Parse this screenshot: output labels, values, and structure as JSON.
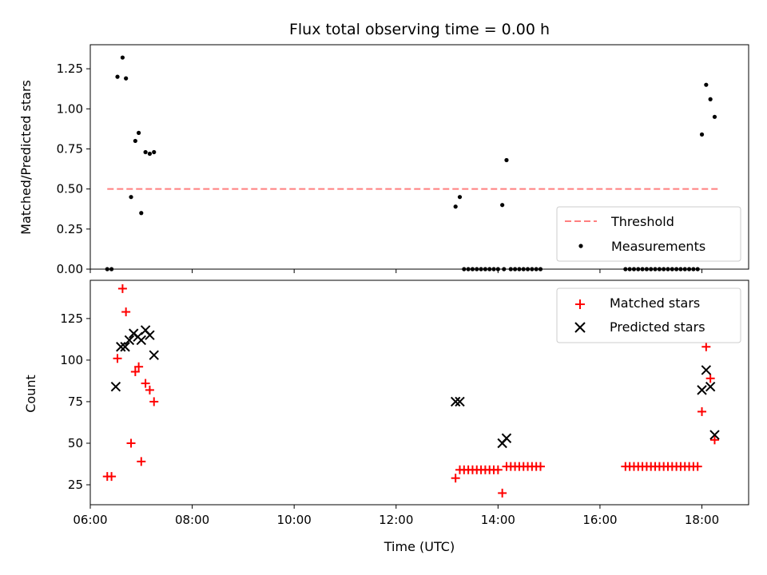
{
  "chart_data": [
    {
      "type": "scatter",
      "title": "Flux total observing time = 0.00 h",
      "xlabel": "",
      "ylabel": "Matched/Predicted stars",
      "xlim": [
        "06:00",
        "18:55"
      ],
      "ylim": [
        0,
        1.4
      ],
      "xticks": [
        "06:00",
        "08:00",
        "10:00",
        "12:00",
        "14:00",
        "16:00",
        "18:00"
      ],
      "xtick_labels_visible": false,
      "yticks": [
        0.0,
        0.25,
        0.5,
        0.75,
        1.0,
        1.25
      ],
      "ytick_labels": [
        "0.00",
        "0.25",
        "0.50",
        "0.75",
        "1.00",
        "1.25"
      ],
      "legend_position": "lower-right",
      "series": [
        {
          "name": "Threshold",
          "kind": "line",
          "style": "dashed",
          "color": "#ff7f7f",
          "x": [
            "06:20",
            "18:20"
          ],
          "y": [
            0.5,
            0.5
          ]
        },
        {
          "name": "Measurements",
          "kind": "scatter",
          "marker": "dot",
          "color": "#000000",
          "x": [
            "06:20",
            "06:25",
            "06:32",
            "06:38",
            "06:42",
            "06:48",
            "06:53",
            "06:57",
            "07:00",
            "07:05",
            "07:10",
            "07:15",
            "13:10",
            "13:15",
            "13:20",
            "13:25",
            "13:30",
            "13:35",
            "13:40",
            "13:45",
            "13:50",
            "13:55",
            "14:00",
            "14:05",
            "14:07",
            "14:10",
            "14:15",
            "14:20",
            "14:25",
            "14:30",
            "14:35",
            "14:40",
            "14:45",
            "14:50",
            "16:30",
            "16:35",
            "16:40",
            "16:45",
            "16:50",
            "16:55",
            "17:00",
            "17:05",
            "17:10",
            "17:15",
            "17:20",
            "17:25",
            "17:30",
            "17:35",
            "17:40",
            "17:45",
            "17:50",
            "17:55",
            "18:00",
            "18:05",
            "18:10",
            "18:15"
          ],
          "y": [
            0,
            0,
            1.2,
            1.32,
            1.19,
            0.45,
            0.8,
            0.85,
            0.35,
            0.73,
            0.72,
            0.73,
            0.39,
            0.45,
            0,
            0,
            0,
            0,
            0,
            0,
            0,
            0,
            0,
            0.4,
            0,
            0.68,
            0,
            0,
            0,
            0,
            0,
            0,
            0,
            0,
            0,
            0,
            0,
            0,
            0,
            0,
            0,
            0,
            0,
            0,
            0,
            0,
            0,
            0,
            0,
            0,
            0,
            0,
            0.84,
            1.15,
            1.06,
            0.95
          ]
        }
      ]
    },
    {
      "type": "scatter",
      "title": "",
      "xlabel": "Time (UTC)",
      "ylabel": "Count",
      "xlim": [
        "06:00",
        "18:55"
      ],
      "ylim": [
        13,
        148
      ],
      "xticks": [
        "06:00",
        "08:00",
        "10:00",
        "12:00",
        "14:00",
        "16:00",
        "18:00"
      ],
      "yticks": [
        25,
        50,
        75,
        100,
        125
      ],
      "legend_position": "upper-right",
      "series": [
        {
          "name": "Matched stars",
          "kind": "scatter",
          "marker": "plus",
          "color": "#ff0000",
          "x": [
            "06:20",
            "06:25",
            "06:32",
            "06:38",
            "06:42",
            "06:48",
            "06:53",
            "06:57",
            "07:00",
            "07:05",
            "07:10",
            "07:15",
            "13:10",
            "13:15",
            "13:20",
            "13:25",
            "13:30",
            "13:35",
            "13:40",
            "13:45",
            "13:50",
            "13:55",
            "14:00",
            "14:05",
            "14:10",
            "14:15",
            "14:20",
            "14:25",
            "14:30",
            "14:35",
            "14:40",
            "14:45",
            "14:50",
            "16:30",
            "16:35",
            "16:40",
            "16:45",
            "16:50",
            "16:55",
            "17:00",
            "17:05",
            "17:10",
            "17:15",
            "17:20",
            "17:25",
            "17:30",
            "17:35",
            "17:40",
            "17:45",
            "17:50",
            "17:55",
            "18:00",
            "18:05",
            "18:10",
            "18:15"
          ],
          "y": [
            30,
            30,
            101,
            143,
            129,
            50,
            93,
            96,
            39,
            86,
            82,
            75,
            29,
            34,
            34,
            34,
            34,
            34,
            34,
            34,
            34,
            34,
            34,
            20,
            36,
            36,
            36,
            36,
            36,
            36,
            36,
            36,
            36,
            36,
            36,
            36,
            36,
            36,
            36,
            36,
            36,
            36,
            36,
            36,
            36,
            36,
            36,
            36,
            36,
            36,
            36,
            69,
            108,
            89,
            52
          ]
        },
        {
          "name": "Predicted stars",
          "kind": "scatter",
          "marker": "x",
          "color": "#000000",
          "x": [
            "06:30",
            "06:36",
            "06:41",
            "06:46",
            "06:51",
            "06:56",
            "07:00",
            "07:05",
            "07:10",
            "07:15",
            "13:10",
            "13:15",
            "14:05",
            "14:10",
            "18:00",
            "18:05",
            "18:10",
            "18:15"
          ],
          "y": [
            84,
            108,
            108,
            112,
            116,
            114,
            112,
            118,
            115,
            103,
            75,
            75,
            50,
            53,
            82,
            94,
            84,
            55
          ]
        }
      ]
    }
  ]
}
